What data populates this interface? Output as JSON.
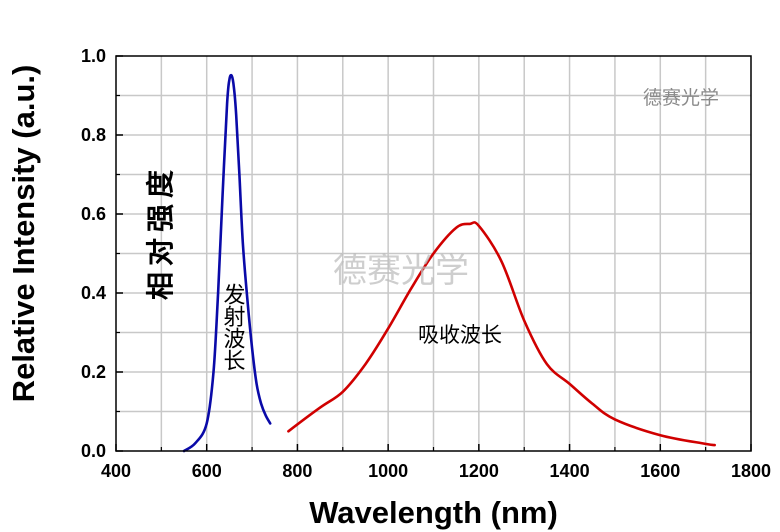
{
  "chart_data": {
    "type": "line",
    "title": "",
    "xlabel": "Wavelength (nm)",
    "ylabel": "Relative Intensity (a.u.)",
    "xlim": [
      400,
      1800
    ],
    "ylim": [
      0.0,
      1.0
    ],
    "grid": true,
    "x_ticks": [
      "400",
      "600",
      "800",
      "1000",
      "1200",
      "1400",
      "1600",
      "1800"
    ],
    "y_ticks": [
      "0.0",
      "0.2",
      "0.4",
      "0.6",
      "0.8",
      "1.0"
    ],
    "series": [
      {
        "name": "发射波长",
        "color": "#0a0aa8",
        "x": [
          550,
          575,
          600,
          615,
          625,
          635,
          645,
          650,
          655,
          660,
          665,
          672,
          680,
          690,
          700,
          710,
          720,
          730,
          740
        ],
        "y": [
          0.0,
          0.02,
          0.07,
          0.2,
          0.4,
          0.65,
          0.88,
          0.94,
          0.95,
          0.92,
          0.85,
          0.7,
          0.52,
          0.38,
          0.26,
          0.17,
          0.12,
          0.09,
          0.07
        ]
      },
      {
        "name": "吸收波长",
        "color": "#d00000",
        "x": [
          780,
          850,
          900,
          950,
          1000,
          1050,
          1100,
          1150,
          1180,
          1200,
          1250,
          1300,
          1350,
          1400,
          1450,
          1500,
          1600,
          1700,
          1720
        ],
        "y": [
          0.05,
          0.11,
          0.15,
          0.22,
          0.31,
          0.41,
          0.5,
          0.565,
          0.575,
          0.57,
          0.48,
          0.33,
          0.22,
          0.17,
          0.12,
          0.08,
          0.04,
          0.018,
          0.015
        ]
      }
    ],
    "annotations": {
      "emission_label": "发射波长",
      "absorption_label": "吸收波长",
      "cn_ylabel": "相对强度"
    }
  },
  "watermarks": {
    "center": "德赛光学",
    "corner": "德赛光学"
  }
}
